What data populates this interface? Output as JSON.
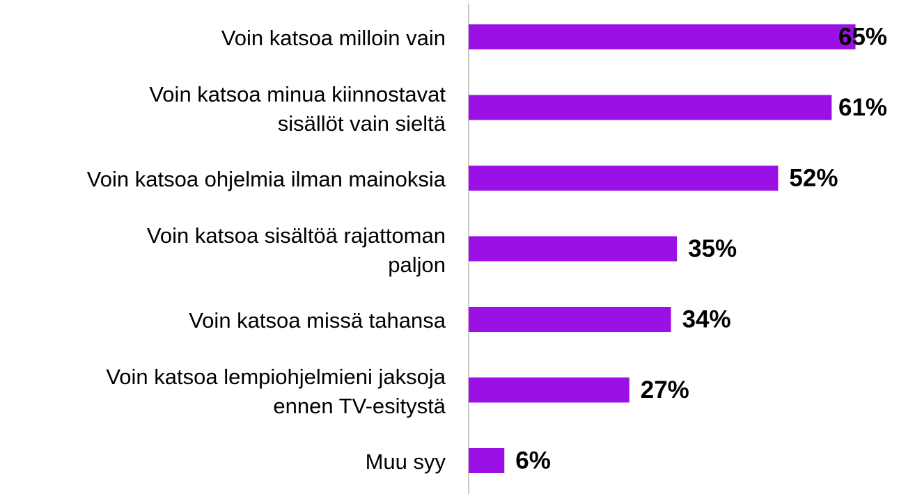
{
  "chart_data": {
    "type": "barh",
    "categories": [
      "Voin katsoa milloin vain",
      "Voin katsoa minua kiinnostavat\nsisällöt vain sieltä",
      "Voin katsoa ohjelmia ilman mainoksia",
      "Voin katsoa sisältöä rajattoman\npaljon",
      "Voin katsoa missä tahansa",
      "Voin katsoa lempiohjelmieni jaksoja\nennen TV-esitystä",
      "Muu syy"
    ],
    "values": [
      65,
      61,
      52,
      35,
      34,
      27,
      6
    ],
    "value_labels": [
      "65%",
      "61%",
      "52%",
      "35%",
      "34%",
      "27%",
      "6%"
    ],
    "color": "#9b10e4",
    "xlim": [
      0,
      75
    ]
  }
}
